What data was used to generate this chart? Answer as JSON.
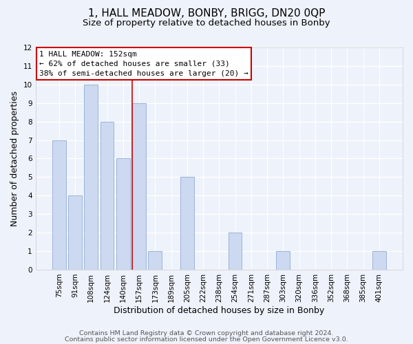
{
  "title": "1, HALL MEADOW, BONBY, BRIGG, DN20 0QP",
  "subtitle": "Size of property relative to detached houses in Bonby",
  "xlabel": "Distribution of detached houses by size in Bonby",
  "ylabel": "Number of detached properties",
  "categories": [
    "75sqm",
    "91sqm",
    "108sqm",
    "124sqm",
    "140sqm",
    "157sqm",
    "173sqm",
    "189sqm",
    "205sqm",
    "222sqm",
    "238sqm",
    "254sqm",
    "271sqm",
    "287sqm",
    "303sqm",
    "320sqm",
    "336sqm",
    "352sqm",
    "368sqm",
    "385sqm",
    "401sqm"
  ],
  "values": [
    7,
    4,
    10,
    8,
    6,
    9,
    1,
    0,
    5,
    0,
    0,
    2,
    0,
    0,
    1,
    0,
    0,
    0,
    0,
    0,
    1
  ],
  "bar_color": "#ccd9f0",
  "bar_edge_color": "#9ab4d8",
  "highlight_line_color": "#cc0000",
  "highlight_bar_index": 5,
  "ylim": [
    0,
    12
  ],
  "yticks": [
    0,
    1,
    2,
    3,
    4,
    5,
    6,
    7,
    8,
    9,
    10,
    11,
    12
  ],
  "annotation_title": "1 HALL MEADOW: 152sqm",
  "annotation_line1": "← 62% of detached houses are smaller (33)",
  "annotation_line2": "38% of semi-detached houses are larger (20) →",
  "annotation_box_color": "#ffffff",
  "annotation_box_edge": "#cc0000",
  "footer1": "Contains HM Land Registry data © Crown copyright and database right 2024.",
  "footer2": "Contains public sector information licensed under the Open Government Licence v3.0.",
  "background_color": "#eef2fa",
  "grid_color": "#ffffff",
  "title_fontsize": 11,
  "subtitle_fontsize": 9.5,
  "axis_label_fontsize": 9,
  "tick_fontsize": 7.5,
  "annotation_fontsize": 8,
  "footer_fontsize": 6.8
}
